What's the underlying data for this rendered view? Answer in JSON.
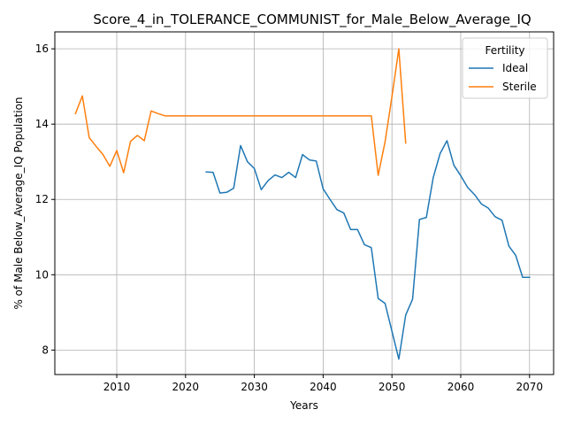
{
  "chart_data": {
    "type": "line",
    "title": "Score_4_in_TOLERANCE_COMMUNIST_for_Male_Below_Average_IQ",
    "xlabel": "Years",
    "ylabel": "% of Male Below_Average_IQ Population",
    "xlim": [
      2001,
      2073.5
    ],
    "ylim": [
      7.35,
      16.45
    ],
    "xticks": [
      2010,
      2020,
      2030,
      2040,
      2050,
      2060,
      2070
    ],
    "yticks": [
      8,
      10,
      12,
      14,
      16
    ],
    "grid": true,
    "legend": {
      "title": "Fertility",
      "placement": "top-right"
    },
    "series": [
      {
        "name": "Ideal",
        "color": "#1f77b4",
        "x": [
          2023,
          2024,
          2025,
          2026,
          2027,
          2028,
          2029,
          2030,
          2031,
          2032,
          2033,
          2034,
          2035,
          2036,
          2037,
          2038,
          2039,
          2040,
          2041,
          2042,
          2043,
          2044,
          2045,
          2046,
          2047,
          2048,
          2049,
          2050,
          2051,
          2052,
          2053,
          2054,
          2055,
          2056,
          2057,
          2058,
          2059,
          2060,
          2061,
          2062,
          2063,
          2064,
          2065,
          2066,
          2067,
          2068,
          2069,
          2070
        ],
        "values": [
          12.73,
          12.72,
          12.17,
          12.19,
          12.3,
          13.43,
          13.0,
          12.82,
          12.26,
          12.5,
          12.65,
          12.58,
          12.72,
          12.58,
          13.19,
          13.05,
          13.02,
          12.28,
          12.0,
          11.73,
          11.64,
          11.2,
          11.2,
          10.8,
          10.72,
          9.37,
          9.24,
          8.5,
          7.76,
          8.93,
          9.35,
          11.47,
          11.52,
          12.58,
          13.22,
          13.56,
          12.91,
          12.63,
          12.32,
          12.13,
          11.88,
          11.77,
          11.54,
          11.45,
          10.76,
          10.51,
          9.93,
          9.93
        ]
      },
      {
        "name": "Sterile",
        "color": "#ff7f0e",
        "x": [
          2004,
          2005,
          2006,
          2007,
          2008,
          2009,
          2010,
          2011,
          2012,
          2013,
          2014,
          2015,
          2016,
          2017,
          2018,
          2019,
          2020,
          2021,
          2022,
          2023,
          2024,
          2025,
          2026,
          2027,
          2028,
          2029,
          2030,
          2031,
          2032,
          2033,
          2034,
          2035,
          2036,
          2037,
          2038,
          2039,
          2040,
          2041,
          2042,
          2043,
          2044,
          2045,
          2046,
          2047,
          2048,
          2049,
          2050,
          2051,
          2052
        ],
        "values": [
          14.28,
          14.75,
          13.64,
          13.41,
          13.19,
          12.88,
          13.3,
          12.71,
          13.54,
          13.7,
          13.56,
          14.35,
          14.28,
          14.22,
          14.22,
          14.22,
          14.22,
          14.22,
          14.22,
          14.22,
          14.22,
          14.22,
          14.22,
          14.22,
          14.22,
          14.22,
          14.22,
          14.22,
          14.22,
          14.22,
          14.22,
          14.22,
          14.22,
          14.22,
          14.22,
          14.22,
          14.22,
          14.22,
          14.22,
          14.22,
          14.22,
          14.22,
          14.22,
          14.22,
          12.64,
          13.53,
          14.73,
          16.0,
          13.5
        ]
      }
    ]
  }
}
